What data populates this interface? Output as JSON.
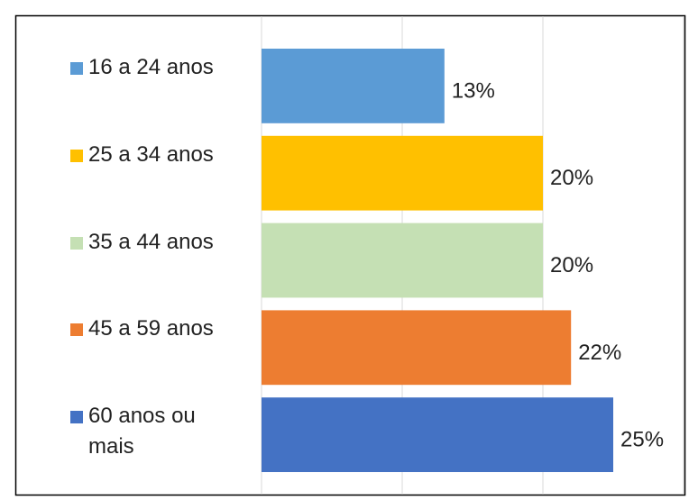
{
  "chart_data": {
    "type": "barh",
    "categories": [
      "16 a 24 anos",
      "25 a 34 anos",
      "35 a 44 anos",
      "45 a 59 anos",
      "60 anos ou mais"
    ],
    "values": [
      13,
      20,
      20,
      22,
      25
    ],
    "value_labels": [
      "13%",
      "20%",
      "20%",
      "22%",
      "25%"
    ],
    "colors": [
      "#5b9bd5",
      "#ffc000",
      "#c5e0b4",
      "#ed7d31",
      "#4472c4"
    ],
    "xlim": [
      0,
      30
    ],
    "xticks": [
      0,
      10,
      20,
      30
    ],
    "grid": true
  }
}
